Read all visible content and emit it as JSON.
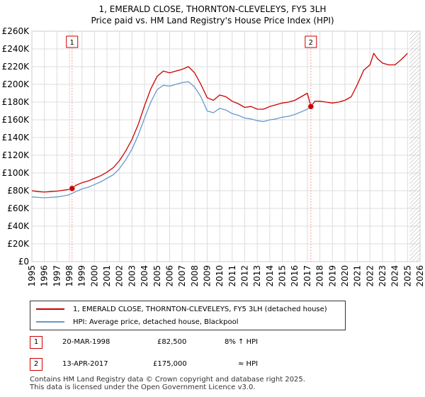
{
  "header": {
    "title_line1": "1, EMERALD CLOSE, THORNTON-CLEVELEYS, FY5 3LH",
    "title_line2": "Price paid vs. HM Land Registry's House Price Index (HPI)"
  },
  "colors": {
    "red": "#cc0000",
    "blue": "#6699cc",
    "grid": "#dddddd",
    "marker_line": "#ff9999",
    "forecast_hatch": "#999999"
  },
  "chart_data": {
    "type": "line",
    "x_range": [
      1995,
      2026
    ],
    "ylim": [
      0,
      260000
    ],
    "y_ticks": [
      0,
      20000,
      40000,
      60000,
      80000,
      100000,
      120000,
      140000,
      160000,
      180000,
      200000,
      220000,
      240000,
      260000
    ],
    "y_tick_labels": [
      "£0",
      "£20K",
      "£40K",
      "£60K",
      "£80K",
      "£100K",
      "£120K",
      "£140K",
      "£160K",
      "£180K",
      "£200K",
      "£220K",
      "£240K",
      "£260K"
    ],
    "x_ticks": [
      1995,
      1996,
      1997,
      1998,
      1999,
      2000,
      2001,
      2002,
      2003,
      2004,
      2005,
      2006,
      2007,
      2008,
      2009,
      2010,
      2011,
      2012,
      2013,
      2014,
      2015,
      2016,
      2017,
      2018,
      2019,
      2020,
      2021,
      2022,
      2023,
      2024,
      2025,
      2026
    ],
    "forecast_start": 2025.0,
    "series": [
      {
        "name": "1, EMERALD CLOSE, THORNTON-CLEVELEYS, FY5 3LH (detached house)",
        "color": "#cc0000",
        "x": [
          1995.0,
          1995.5,
          1996.0,
          1996.5,
          1997.0,
          1997.5,
          1998.0,
          1998.21,
          1998.5,
          1999.0,
          1999.5,
          2000.0,
          2000.5,
          2001.0,
          2001.5,
          2002.0,
          2002.5,
          2003.0,
          2003.5,
          2004.0,
          2004.5,
          2005.0,
          2005.5,
          2006.0,
          2006.5,
          2007.0,
          2007.5,
          2008.0,
          2008.5,
          2009.0,
          2009.5,
          2010.0,
          2010.5,
          2011.0,
          2011.5,
          2012.0,
          2012.5,
          2013.0,
          2013.5,
          2014.0,
          2014.5,
          2015.0,
          2015.5,
          2016.0,
          2016.5,
          2017.0,
          2017.28,
          2017.6,
          2018.0,
          2018.5,
          2019.0,
          2019.5,
          2020.0,
          2020.5,
          2021.0,
          2021.5,
          2022.0,
          2022.3,
          2022.6,
          2023.0,
          2023.5,
          2024.0,
          2024.5,
          2025.0
        ],
        "y": [
          80000,
          79000,
          78500,
          79000,
          79500,
          80500,
          81500,
          82500,
          86000,
          89000,
          91000,
          94000,
          97000,
          101000,
          106000,
          114000,
          125000,
          138000,
          155000,
          176000,
          195000,
          209000,
          215000,
          213000,
          215000,
          217000,
          220000,
          213000,
          200000,
          185000,
          182000,
          188000,
          186000,
          181000,
          178000,
          174000,
          175000,
          172000,
          172000,
          175000,
          177000,
          179000,
          180000,
          182000,
          186000,
          190000,
          175000,
          181000,
          181000,
          180000,
          179000,
          180000,
          182000,
          186000,
          200000,
          216000,
          222000,
          235000,
          229000,
          224000,
          222000,
          222000,
          228000,
          235000
        ]
      },
      {
        "name": "HPI: Average price, detached house, Blackpool",
        "color": "#6699cc",
        "x": [
          1995.0,
          1995.5,
          1996.0,
          1996.5,
          1997.0,
          1997.5,
          1998.0,
          1998.5,
          1999.0,
          1999.5,
          2000.0,
          2000.5,
          2001.0,
          2001.5,
          2002.0,
          2002.5,
          2003.0,
          2003.5,
          2004.0,
          2004.5,
          2005.0,
          2005.5,
          2006.0,
          2006.5,
          2007.0,
          2007.5,
          2008.0,
          2008.5,
          2009.0,
          2009.5,
          2010.0,
          2010.5,
          2011.0,
          2011.5,
          2012.0,
          2012.5,
          2013.0,
          2013.5,
          2014.0,
          2014.5,
          2015.0,
          2015.5,
          2016.0,
          2016.5,
          2017.0,
          2017.28
        ],
        "y": [
          73000,
          72500,
          72000,
          72500,
          73000,
          74000,
          75500,
          79000,
          82000,
          84000,
          87000,
          90000,
          94000,
          98000,
          105000,
          115000,
          127000,
          143000,
          162000,
          180000,
          194000,
          199000,
          198000,
          200000,
          202000,
          203000,
          197000,
          186000,
          170000,
          168000,
          173000,
          171000,
          167000,
          165000,
          162000,
          161000,
          159000,
          158000,
          160000,
          161000,
          163000,
          164000,
          166000,
          169000,
          172000,
          175000
        ]
      }
    ],
    "transactions": [
      {
        "label": "1",
        "x": 1998.21,
        "y": 82500
      },
      {
        "label": "2",
        "x": 2017.28,
        "y": 175000
      }
    ]
  },
  "legend": {
    "items": [
      {
        "label": "1, EMERALD CLOSE, THORNTON-CLEVELEYS, FY5 3LH (detached house)"
      },
      {
        "label": "HPI: Average price, detached house, Blackpool"
      }
    ]
  },
  "transactions_table": [
    {
      "num": "1",
      "date": "20-MAR-1998",
      "price": "£82,500",
      "hpi": "8% ↑ HPI"
    },
    {
      "num": "2",
      "date": "13-APR-2017",
      "price": "£175,000",
      "hpi": "≈ HPI"
    }
  ],
  "footer": {
    "line1": "Contains HM Land Registry data © Crown copyright and database right 2025.",
    "line2": "This data is licensed under the Open Government Licence v3.0."
  }
}
